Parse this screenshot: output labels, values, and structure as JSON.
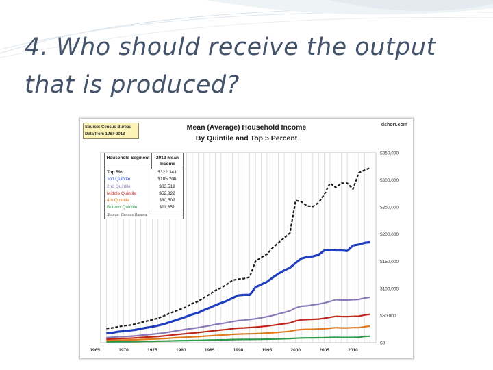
{
  "slide": {
    "title": "4. Who should receive the output that is produced?"
  },
  "chart_data": {
    "type": "line",
    "title": "Mean (Average) Household Income",
    "subtitle": "By Quintile and Top 5 Percent",
    "brand": "dshort.com",
    "source_note": [
      "Source: Census Bureau",
      "Data from 1967-2013"
    ],
    "xlabel": "",
    "ylabel": "",
    "xlim": [
      1966,
      2014
    ],
    "ylim": [
      0,
      350000
    ],
    "y_ticks": [
      {
        "value": 0,
        "label": "$0"
      },
      {
        "value": 50000,
        "label": "$50,000"
      },
      {
        "value": 100000,
        "label": "$100,000"
      },
      {
        "value": 150000,
        "label": "$150,000"
      },
      {
        "value": 200000,
        "label": "$200,000"
      },
      {
        "value": 250000,
        "label": "$250,000"
      },
      {
        "value": 300000,
        "label": "$300,000"
      },
      {
        "value": 350000,
        "label": "$350,000"
      }
    ],
    "x_ticks": [
      {
        "value": 1965,
        "label": "1965"
      },
      {
        "value": 1970,
        "label": "1970"
      },
      {
        "value": 1975,
        "label": "1975"
      },
      {
        "value": 1980,
        "label": "1980"
      },
      {
        "value": 1985,
        "label": "1985"
      },
      {
        "value": 1990,
        "label": "1990"
      },
      {
        "value": 1995,
        "label": "1995"
      },
      {
        "value": 2000,
        "label": "2000"
      },
      {
        "value": 2005,
        "label": "2005"
      },
      {
        "value": 2010,
        "label": "2010"
      }
    ],
    "grid": "vertical",
    "legend_table": {
      "header_segment": "Household Segment",
      "header_value": "2013 Mean Income",
      "footnote": "Source: Census Bureau",
      "rows": [
        {
          "segment": "Top 5%",
          "value": "$322,343",
          "color": "#1a1a1a"
        },
        {
          "segment": "Top Quintile",
          "value": "$185,206",
          "color": "#1f3fbf"
        },
        {
          "segment": "2nd Quintile",
          "value": "$83,519",
          "color": "#8a7ab8"
        },
        {
          "segment": "Middle Quintile",
          "value": "$52,322",
          "color": "#c0281e"
        },
        {
          "segment": "4th Quintile",
          "value": "$30,509",
          "color": "#e07a1e"
        },
        {
          "segment": "Bottom Quintile",
          "value": "$11,651",
          "color": "#2e9a4a"
        }
      ]
    },
    "x": [
      1967,
      1968,
      1969,
      1970,
      1971,
      1972,
      1973,
      1974,
      1975,
      1976,
      1977,
      1978,
      1979,
      1980,
      1981,
      1982,
      1983,
      1984,
      1985,
      1986,
      1987,
      1988,
      1989,
      1990,
      1991,
      1992,
      1993,
      1994,
      1995,
      1996,
      1997,
      1998,
      1999,
      2000,
      2001,
      2002,
      2003,
      2004,
      2005,
      2006,
      2007,
      2008,
      2009,
      2010,
      2011,
      2012,
      2013
    ],
    "series": [
      {
        "name": "Top 5%",
        "color": "#1a1a1a",
        "dashed": true,
        "width": 2.2,
        "values": [
          26000,
          27000,
          29000,
          31000,
          32000,
          34000,
          37000,
          39500,
          42000,
          45000,
          49000,
          54000,
          58000,
          62000,
          66000,
          72000,
          76000,
          83000,
          89000,
          96000,
          101000,
          107000,
          115000,
          117000,
          118000,
          121000,
          150000,
          157000,
          163000,
          175000,
          184000,
          193000,
          202000,
          262000,
          260000,
          252000,
          251000,
          258000,
          273000,
          294000,
          286000,
          294000,
          294000,
          283000,
          313000,
          318000,
          322343
        ]
      },
      {
        "name": "Top Quintile",
        "color": "#1f3fbf",
        "dashed": false,
        "width": 3.2,
        "values": [
          17000,
          18000,
          20000,
          21000,
          22000,
          23500,
          25500,
          27500,
          29000,
          31500,
          34000,
          37500,
          41000,
          44500,
          48000,
          52000,
          55000,
          60000,
          64000,
          69000,
          73000,
          77000,
          82000,
          87000,
          88000,
          88000,
          102000,
          107000,
          112000,
          120000,
          127000,
          133000,
          138000,
          147000,
          155000,
          158000,
          159000,
          162000,
          170000,
          171000,
          170000,
          170000,
          169000,
          179000,
          181000,
          184000,
          185206
        ]
      },
      {
        "name": "2nd Quintile",
        "color": "#8a7ab8",
        "dashed": false,
        "width": 2.2,
        "values": [
          9000,
          9800,
          10500,
          11000,
          11500,
          12300,
          13400,
          14400,
          15300,
          16500,
          17700,
          19500,
          21200,
          23000,
          24600,
          26000,
          27500,
          29500,
          31200,
          33300,
          35000,
          36800,
          38800,
          40600,
          41400,
          42600,
          44000,
          45800,
          47800,
          50000,
          52800,
          55500,
          58500,
          64000,
          67000,
          67700,
          69600,
          71000,
          73000,
          76000,
          79000,
          78500,
          78500,
          79000,
          79500,
          82000,
          83519
        ]
      },
      {
        "name": "Middle Quintile",
        "color": "#c0281e",
        "dashed": false,
        "width": 2.2,
        "values": [
          6300,
          6800,
          7300,
          7700,
          8000,
          8600,
          9300,
          10000,
          10500,
          11300,
          12100,
          13300,
          14500,
          15600,
          16600,
          17500,
          18500,
          19800,
          20800,
          22100,
          23200,
          24300,
          25600,
          26700,
          27100,
          27800,
          28400,
          29400,
          30400,
          31800,
          33400,
          34800,
          36300,
          40000,
          42000,
          42500,
          43000,
          43500,
          44800,
          46600,
          48400,
          48000,
          47900,
          48400,
          48700,
          50800,
          52322
        ]
      },
      {
        "name": "4th Quintile",
        "color": "#e07a1e",
        "dashed": false,
        "width": 2.2,
        "values": [
          3900,
          4200,
          4500,
          4700,
          4900,
          5200,
          5700,
          6100,
          6400,
          6900,
          7400,
          8100,
          8800,
          9400,
          10000,
          10500,
          11000,
          11800,
          12400,
          13100,
          13700,
          14300,
          15100,
          15700,
          15900,
          16200,
          16400,
          16900,
          17500,
          18200,
          19000,
          19900,
          20700,
          23000,
          24000,
          24500,
          24700,
          25000,
          25500,
          26500,
          27500,
          27000,
          27000,
          27500,
          27500,
          29200,
          30509
        ]
      },
      {
        "name": "Bottom Quintile",
        "color": "#2e9a4a",
        "dashed": false,
        "width": 2.2,
        "values": [
          1400,
          1500,
          1600,
          1700,
          1800,
          1900,
          2100,
          2300,
          2400,
          2600,
          2800,
          3000,
          3300,
          3500,
          3700,
          3900,
          4100,
          4300,
          4500,
          4800,
          5000,
          5200,
          5500,
          5700,
          5800,
          5800,
          5900,
          6100,
          6300,
          6500,
          6800,
          7100,
          7400,
          8000,
          8500,
          8600,
          8700,
          8800,
          9000,
          9300,
          9600,
          9400,
          9400,
          9500,
          9600,
          11400,
          11651
        ]
      }
    ]
  }
}
